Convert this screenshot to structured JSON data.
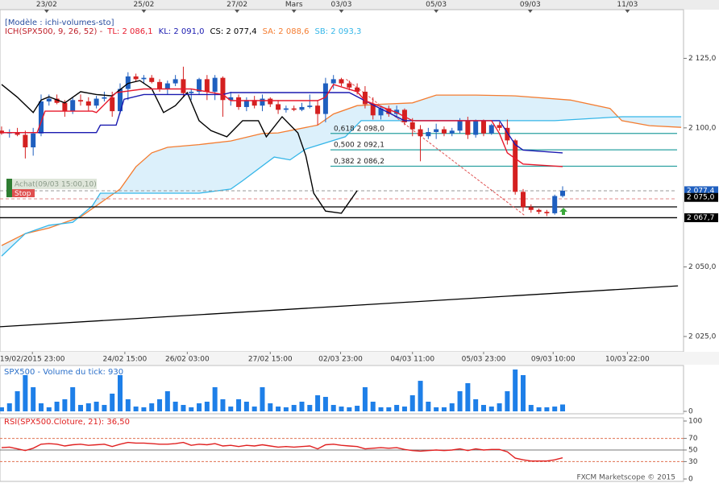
{
  "chart_data": [
    {
      "type": "candlestick",
      "title": "[Modèle : ichi-volumes-sto]",
      "indicator_label": "ICH(SPX500, 9, 26, 52) -",
      "indicator_color": "#c0202a",
      "indicator_items": [
        {
          "label": "TL: 2 086,1",
          "color": "#e8192c"
        },
        {
          "label": "KL: 2 091,0",
          "color": "#1a1ab0"
        },
        {
          "label": "CS: 2 077,4",
          "color": "#000000"
        },
        {
          "label": "SA: 2 088,6",
          "color": "#f47c30"
        },
        {
          "label": "SB: 2 093,3",
          "color": "#35b6e8"
        }
      ],
      "xlim": [
        -0.2,
        86.3
      ],
      "ylim": [
        2019.5,
        2142.5
      ],
      "yticks": [
        {
          "value": 2125,
          "label": "2 125,0"
        },
        {
          "value": 2100,
          "label": "2 100,0"
        },
        {
          "value": 2050,
          "label": "2 050,0"
        },
        {
          "value": 2025,
          "label": "2 025,0"
        }
      ],
      "xticks_top": [
        {
          "value": 5.7,
          "label": "23/02"
        },
        {
          "value": 18,
          "label": "25/02"
        },
        {
          "value": 29.8,
          "label": "27/02"
        },
        {
          "value": 37,
          "label": "Mars"
        },
        {
          "value": 43,
          "label": "03/03"
        },
        {
          "value": 55,
          "label": "05/03"
        },
        {
          "value": 66.9,
          "label": "09/03"
        },
        {
          "value": 79.2,
          "label": "11/03"
        }
      ],
      "xticks_bottom": [
        {
          "value": 3.9,
          "label": "19/02/2015 23:00"
        },
        {
          "value": 15.6,
          "label": "24/02 15:00"
        },
        {
          "value": 23.5,
          "label": "26/02 03:00"
        },
        {
          "value": 34,
          "label": "27/02 15:00"
        },
        {
          "value": 42.9,
          "label": "02/03 23:00"
        },
        {
          "value": 52,
          "label": "04/03 11:00"
        },
        {
          "value": 61,
          "label": "05/03 23:00"
        },
        {
          "value": 69.8,
          "label": "09/03 10:00"
        },
        {
          "value": 79.2,
          "label": "10/03 22:00"
        }
      ],
      "up_color": "#1f5fbf",
      "down_color": "#d42020",
      "x": [
        0,
        1,
        2,
        3,
        4,
        5,
        6,
        7,
        8,
        9,
        10,
        11,
        12,
        13,
        14,
        15,
        16,
        17,
        18,
        19,
        20,
        21,
        22,
        23,
        24,
        25,
        26,
        27,
        28,
        29,
        30,
        31,
        32,
        33,
        34,
        35,
        36,
        37,
        38,
        39,
        40,
        41,
        42,
        43,
        44,
        45,
        46,
        47,
        48,
        49,
        50,
        51,
        52,
        53,
        54,
        55,
        56,
        57,
        58,
        59,
        60,
        61,
        62,
        63,
        64,
        65,
        66,
        67,
        68,
        69,
        70,
        71
      ],
      "open": [
        2099,
        2098,
        2098.5,
        2097.5,
        2093,
        2098,
        2109.5,
        2110.5,
        2109,
        2106,
        2110,
        2109.5,
        2108,
        2110.5,
        2111,
        2106,
        2114,
        2118.5,
        2117.5,
        2118,
        2116.5,
        2114,
        2116,
        2117.5,
        2112.5,
        2113,
        2117.5,
        2113,
        2118,
        2110,
        2111,
        2107.5,
        2110,
        2108,
        2110.5,
        2108.5,
        2106.5,
        2107,
        2106.5,
        2107.5,
        2108,
        2105,
        2116,
        2117.5,
        2116,
        2114.5,
        2113,
        2108.5,
        2104.5,
        2107,
        2105,
        2106.5,
        2102,
        2099.5,
        2097,
        2098.5,
        2099.5,
        2098,
        2099,
        2102.5,
        2097.5,
        2102.5,
        2098,
        2101,
        2100,
        2095.5,
        2077,
        2071.5,
        2070.5,
        2069.8,
        2069.3,
        2075.5
      ],
      "high": [
        2100.5,
        2099.5,
        2100,
        2099,
        2100,
        2112,
        2112,
        2112,
        2110,
        2111,
        2112,
        2111,
        2111.5,
        2113,
        2113,
        2116,
        2120,
        2119.5,
        2119,
        2119,
        2117.5,
        2117,
        2119,
        2122,
        2114,
        2118,
        2119,
        2119,
        2118.5,
        2113,
        2112,
        2111,
        2111.5,
        2112,
        2111,
        2110,
        2108,
        2108,
        2109,
        2112,
        2110,
        2118,
        2119,
        2118,
        2117,
        2116,
        2115,
        2111,
        2108,
        2108,
        2108,
        2107,
        2103.5,
        2101,
        2100,
        2101.5,
        2100.5,
        2100,
        2103.5,
        2104,
        2103,
        2103,
        2101.5,
        2102,
        2103,
        2096,
        2078,
        2072.5,
        2071,
        2070.5,
        2076,
        2079
      ],
      "low": [
        2097.5,
        2096.5,
        2097,
        2089,
        2090,
        2097,
        2108,
        2108.5,
        2104,
        2105,
        2108,
        2106,
        2107,
        2109.5,
        2104,
        2105,
        2110,
        2116.5,
        2116,
        2116,
        2113,
        2112,
        2115,
        2111,
        2110,
        2112,
        2110,
        2110,
        2104,
        2108,
        2106.5,
        2106,
        2107,
        2106,
        2107.5,
        2105,
        2105.5,
        2106,
        2106,
        2107,
        2101,
        2102,
        2114,
        2115,
        2113.5,
        2112,
        2107,
        2103,
        2103,
        2104,
        2103.5,
        2101,
        2097,
        2088,
        2096,
        2096,
        2097,
        2097,
        2098,
        2096,
        2096.5,
        2097,
        2097.5,
        2099,
        2094,
        2076,
        2070,
        2069.5,
        2069,
        2068.3,
        2068.8,
        2075
      ],
      "close": [
        2098,
        2098.5,
        2097.5,
        2093,
        2098,
        2109.5,
        2110.5,
        2109,
        2106,
        2110,
        2109.5,
        2108,
        2110.5,
        2111,
        2106,
        2114,
        2118.5,
        2117.5,
        2118,
        2116.5,
        2114,
        2116,
        2117.5,
        2112.5,
        2113,
        2117.5,
        2113,
        2118,
        2110,
        2111,
        2107.5,
        2110,
        2108,
        2110.5,
        2108.5,
        2106.5,
        2107,
        2106.5,
        2107.5,
        2108,
        2105,
        2116,
        2117.5,
        2116,
        2114.5,
        2113,
        2108.5,
        2104.5,
        2107,
        2105,
        2106.5,
        2102,
        2099.5,
        2097,
        2098.5,
        2099.5,
        2098,
        2099,
        2102.5,
        2097.5,
        2102.5,
        2098,
        2101,
        2100,
        2095.5,
        2077,
        2071.5,
        2070.5,
        2069.8,
        2069.3,
        2075.5,
        2077.4
      ],
      "cloud": {
        "color": "#dcf0fb",
        "span_a": {
          "color": "#f47c30",
          "x": [
            0,
            3,
            6,
            10,
            12,
            15,
            17,
            19,
            21,
            25,
            29,
            33,
            35,
            40,
            42,
            45,
            48,
            52,
            55,
            60,
            65,
            72,
            77,
            78.5,
            82,
            86
          ],
          "values": [
            2057.7,
            2062,
            2064,
            2068,
            2072,
            2078,
            2086,
            2091,
            2093,
            2094,
            2095.3,
            2098,
            2098.2,
            2101,
            2105,
            2108,
            2108.5,
            2109,
            2111.8,
            2111.8,
            2111.5,
            2110,
            2107,
            2102.6,
            2100.8,
            2100.2
          ]
        },
        "span_b": {
          "color": "#35b6e8",
          "x": [
            0,
            3,
            6,
            9,
            11.5,
            12.5,
            21,
            25,
            29,
            30.5,
            34.5,
            36.5,
            38.5,
            43.5,
            45.5,
            51,
            70,
            78.5,
            86
          ],
          "values": [
            2053.9,
            2062,
            2065,
            2066,
            2072,
            2076.5,
            2076.5,
            2076.5,
            2078,
            2081,
            2089.5,
            2088.5,
            2092.4,
            2096.8,
            2102.6,
            2102.6,
            2102.6,
            2104,
            2104
          ]
        }
      },
      "lines": [
        {
          "color": "#000000",
          "x": [
            0,
            2,
            4,
            5,
            6,
            8,
            10,
            12,
            14,
            16,
            17.5,
            19,
            20.5,
            22,
            23.5,
            25,
            26.5,
            28.5,
            30.5,
            32.5,
            33.5,
            35.5,
            37.5,
            38.5,
            39.5,
            41,
            43,
            45
          ],
          "values": [
            2115.6,
            2111,
            2105.5,
            2110,
            2111.2,
            2109,
            2113,
            2112,
            2111.5,
            2116,
            2117,
            2114.1,
            2105.5,
            2108,
            2112.7,
            2102.6,
            2099,
            2096.8,
            2102.6,
            2102.6,
            2096.8,
            2104,
            2098.2,
            2090,
            2076.5,
            2070.1,
            2069.3,
            2077.4
          ]
        },
        {
          "color": "#1a1ab0",
          "x": [
            0,
            12,
            12.5,
            14.5,
            15.5,
            18,
            28,
            29,
            44,
            47,
            51,
            63,
            65,
            66,
            71
          ],
          "values": [
            2098.3,
            2098.3,
            2101,
            2101,
            2110.3,
            2112,
            2112,
            2112.7,
            2112.7,
            2108.3,
            2102.6,
            2102.6,
            2094,
            2092,
            2091.0
          ]
        },
        {
          "color": "#e8192c",
          "x": [
            0,
            4.5,
            5.5,
            11.5,
            12,
            14.5,
            18,
            24,
            28,
            29,
            40,
            41,
            42,
            45,
            46,
            50,
            52,
            62,
            63,
            64,
            66,
            71
          ],
          "values": [
            2098.3,
            2098.3,
            2106,
            2106,
            2105.5,
            2112.7,
            2114,
            2114,
            2112,
            2109.8,
            2109.8,
            2111,
            2115.6,
            2113,
            2109.8,
            2105.5,
            2102.6,
            2102.6,
            2098,
            2091,
            2087,
            2086.1
          ]
        }
      ],
      "trendlines": [
        {
          "color": "#e05050",
          "dash": true,
          "x": [
            43.6,
            66.3
          ],
          "values": [
            2117.5,
            2068.3
          ]
        },
        {
          "color": "#000000",
          "dash": false,
          "x": [
            -0.2,
            85.6
          ],
          "values": [
            2028.5,
            2043.2
          ]
        }
      ],
      "levels": [
        {
          "value": 2098.0,
          "label": "0,618 2 098,0"
        },
        {
          "value": 2092.1,
          "label": "0,500 2 092,1"
        },
        {
          "value": 2086.2,
          "label": "0,382 2 086,2"
        }
      ],
      "level_color": "#2aa0a0",
      "hlines": [
        {
          "value": 2077.4,
          "color": "#999999",
          "dash": true
        },
        {
          "value": 2074.5,
          "color": "#e08888",
          "dash": true
        },
        {
          "value": 2071.6,
          "color": "#000000",
          "dash": false
        },
        {
          "value": 2067.7,
          "color": "#000000",
          "dash": false
        }
      ],
      "price_labels": [
        {
          "value": 2077.4,
          "label": "2 077,4",
          "color": "#1f5fbf"
        },
        {
          "value": 2075.0,
          "label": "2 075,0",
          "color": "#000000"
        },
        {
          "value": 2067.7,
          "label": "2 067,7",
          "color": "#000000"
        }
      ],
      "order": {
        "label": "Achat(09/03 15:00,10)",
        "stop_label": "Stop"
      }
    },
    {
      "type": "bar",
      "title": "SPX500 - Volume du tick: 930",
      "color": "#1e7fe8",
      "xlim": [
        -0.2,
        86.3
      ],
      "ylim": [
        0,
        6000
      ],
      "yticks": [
        0
      ],
      "x": [
        0,
        1,
        2,
        3,
        4,
        5,
        6,
        7,
        8,
        9,
        10,
        11,
        12,
        13,
        14,
        15,
        16,
        17,
        18,
        19,
        20,
        21,
        22,
        23,
        24,
        25,
        26,
        27,
        28,
        29,
        30,
        31,
        32,
        33,
        34,
        35,
        36,
        37,
        38,
        39,
        40,
        41,
        42,
        43,
        44,
        45,
        46,
        47,
        48,
        49,
        50,
        51,
        52,
        53,
        54,
        55,
        56,
        57,
        58,
        59,
        60,
        61,
        62,
        63,
        64,
        65,
        66,
        67,
        68,
        69,
        70,
        71
      ],
      "values": [
        550,
        1090,
        2730,
        4910,
        3270,
        1090,
        550,
        1310,
        1640,
        3270,
        870,
        1090,
        1310,
        870,
        2400,
        4910,
        1640,
        650,
        550,
        1090,
        1640,
        2730,
        1310,
        870,
        550,
        1090,
        1310,
        3270,
        1640,
        650,
        1640,
        1310,
        650,
        3270,
        1090,
        650,
        550,
        870,
        1310,
        870,
        2180,
        1960,
        870,
        650,
        550,
        760,
        3270,
        1310,
        550,
        550,
        870,
        650,
        2180,
        4140,
        1310,
        550,
        550,
        1090,
        2730,
        3820,
        1640,
        870,
        650,
        1090,
        2730,
        5670,
        4910,
        870,
        550,
        550,
        650,
        930
      ]
    },
    {
      "type": "line",
      "title": "RSI(SPX500.Cloture, 21): 36,50",
      "color": "#e02020",
      "xlim": [
        -0.2,
        86.3
      ],
      "ylim": [
        0,
        100
      ],
      "yticks": [
        100,
        70,
        50,
        30,
        0
      ],
      "levels": [
        {
          "value": 70,
          "color": "#e07050",
          "dash": true
        },
        {
          "value": 50,
          "color": "#777777",
          "dash": false
        },
        {
          "value": 30,
          "color": "#e07050",
          "dash": true
        }
      ],
      "x": [
        0,
        1,
        2,
        3,
        4,
        5,
        6,
        7,
        8,
        9,
        10,
        11,
        12,
        13,
        14,
        15,
        16,
        17,
        18,
        19,
        20,
        21,
        22,
        23,
        24,
        25,
        26,
        27,
        28,
        29,
        30,
        31,
        32,
        33,
        34,
        35,
        36,
        37,
        38,
        39,
        40,
        41,
        42,
        43,
        44,
        45,
        46,
        47,
        48,
        49,
        50,
        51,
        52,
        53,
        54,
        55,
        56,
        57,
        58,
        59,
        60,
        61,
        62,
        63,
        64,
        65,
        66,
        67,
        68,
        69,
        70,
        71
      ],
      "values": [
        54,
        55,
        52,
        49,
        53,
        60,
        61,
        60,
        57,
        59,
        60,
        58,
        59,
        60,
        56,
        60,
        63,
        62,
        62,
        61,
        60,
        60,
        61,
        63,
        58,
        60,
        59,
        61,
        57,
        58,
        56,
        58,
        57,
        59,
        57,
        55,
        56,
        55,
        56,
        57,
        52,
        59,
        60,
        58,
        57,
        56,
        52,
        53,
        54,
        53,
        54,
        51,
        49,
        48,
        49,
        50,
        49,
        50,
        52,
        49,
        52,
        50,
        51,
        51,
        47,
        36,
        33,
        31,
        31,
        31,
        33,
        36.5
      ]
    }
  ],
  "footer": "FXCM Marketscope © 2015"
}
